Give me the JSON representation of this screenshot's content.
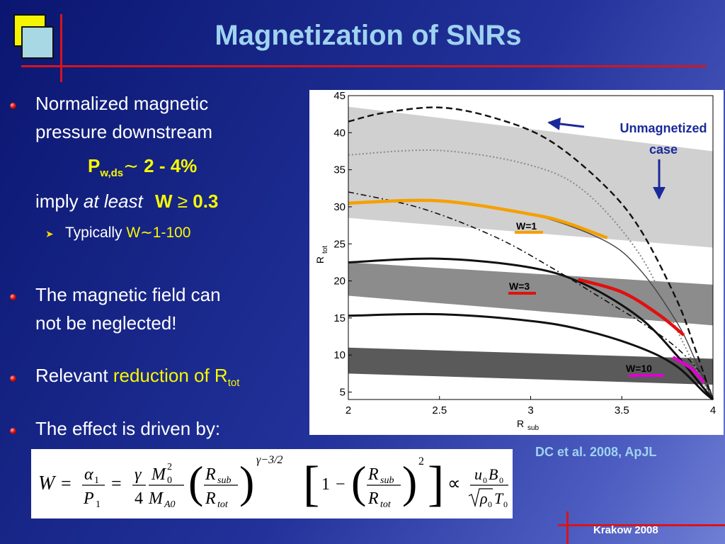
{
  "title": "Magnetization of SNRs",
  "bullets": {
    "b1_line1": "Normalized magnetic",
    "b1_line2": "pressure downstream",
    "pressure_P": "P",
    "pressure_sub": "w,ds",
    "pressure_tilde": "∼",
    "pressure_value": " 2 - 4%",
    "imply": "imply ",
    "at_least": "at least",
    "w_ge": "W ",
    "ge_symbol": "≥",
    "w_value": " 0.3",
    "typically": "Typically ",
    "typ_w": "W∼",
    "typ_range": "1-100",
    "b2_line1": "The magnetic field can",
    "b2_line2": "not be neglected!",
    "b3_text": "Relevant ",
    "b3_highlight": "reduction of R",
    "b3_sub": "tot",
    "b4_text": "The effect is driven by:"
  },
  "chart_data": {
    "type": "line",
    "xlabel": "R",
    "xlabel_sub": "sub",
    "ylabel": "R",
    "ylabel_sub": "tot",
    "xlim": [
      2,
      4
    ],
    "ylim": [
      4,
      45
    ],
    "xticks": [
      "2",
      "2.5",
      "3",
      "3.5",
      "4"
    ],
    "yticks": [
      "5",
      "10",
      "15",
      "20",
      "25",
      "30",
      "35",
      "40",
      "45"
    ],
    "bands": [
      {
        "x": [
          2,
          4
        ],
        "lower": [
          28.5,
          24.5
        ],
        "upper": [
          43.5,
          37.5
        ],
        "color": "#d0d0d0"
      },
      {
        "x": [
          2,
          4
        ],
        "lower": [
          18.0,
          14.0
        ],
        "upper": [
          22.5,
          19.5
        ],
        "color": "#8c8c8c"
      },
      {
        "x": [
          2,
          4
        ],
        "lower": [
          7.5,
          6.0
        ],
        "upper": [
          11.0,
          9.5
        ],
        "color": "#5a5a5a"
      }
    ],
    "series": [
      {
        "style": "dashed",
        "color": "#111111",
        "x": [
          2,
          2.2,
          2.5,
          2.8,
          3.1,
          3.4,
          3.6,
          3.8,
          3.9,
          3.97,
          4.0
        ],
        "y": [
          41.5,
          42.7,
          43.4,
          42.0,
          39.0,
          33.0,
          27.0,
          17.5,
          11.0,
          6.0,
          4.0
        ]
      },
      {
        "style": "dotted",
        "color": "#888888",
        "x": [
          2,
          2.5,
          3.0,
          3.3,
          3.6,
          3.8,
          3.9,
          3.97,
          4.0
        ],
        "y": [
          37.0,
          37.6,
          35.6,
          32.0,
          23.5,
          13.5,
          8.5,
          5.2,
          4.0
        ]
      },
      {
        "style": "dashdot",
        "color": "#111111",
        "x": [
          2,
          2.4,
          2.8,
          3.1,
          3.4,
          3.6,
          3.8,
          3.95,
          4.0
        ],
        "y": [
          32.0,
          29.8,
          26.0,
          22.0,
          17.5,
          14.5,
          11.0,
          7.0,
          4.0
        ]
      },
      {
        "style": "solid",
        "color": "#444444",
        "x": [
          2,
          2.5,
          3.0,
          3.4,
          3.6,
          3.8,
          3.9,
          3.97,
          4.0
        ],
        "y": [
          30.5,
          30.8,
          29.0,
          25.5,
          21.5,
          14.5,
          9.5,
          5.5,
          4.0
        ]
      },
      {
        "style": "solid",
        "color": "#111111",
        "x": [
          2,
          2.5,
          3.0,
          3.3,
          3.6,
          3.8,
          3.95,
          4.0
        ],
        "y": [
          22.5,
          23.0,
          21.8,
          19.5,
          15.0,
          10.0,
          5.5,
          4.0
        ]
      },
      {
        "style": "solid",
        "color": "#111111",
        "x": [
          2,
          2.5,
          3.0,
          3.3,
          3.6,
          3.8,
          3.95,
          4.0
        ],
        "y": [
          15.3,
          15.5,
          14.6,
          13.3,
          11.0,
          8.5,
          5.0,
          4.0
        ]
      },
      {
        "style": "highlight",
        "color": "#f5a000",
        "x": [
          2,
          2.5,
          3.0,
          3.2,
          3.42
        ],
        "y": [
          30.5,
          30.8,
          29.0,
          27.8,
          25.8
        ]
      },
      {
        "style": "highlight",
        "color": "#e01010",
        "x": [
          3.26,
          3.5,
          3.7,
          3.84
        ],
        "y": [
          20.2,
          18.5,
          15.5,
          12.7
        ]
      },
      {
        "style": "highlight",
        "color": "#e000d0",
        "x": [
          3.78,
          3.88,
          3.95
        ],
        "y": [
          9.7,
          8.2,
          6.3
        ]
      }
    ],
    "labels": {
      "w1": "W=1",
      "w3": "W=3",
      "w10": "W=10",
      "unmag_1": "Unmagnetized",
      "unmag_2": "case"
    }
  },
  "citation": "DC et al. 2008, ApJL",
  "formula": {
    "W": "W",
    "eq": "=",
    "alpha": "α",
    "one": "1",
    "P": "P",
    "gamma": "γ",
    "four": "4",
    "M": "M",
    "two": "2",
    "zero": "0",
    "A0": "A0",
    "R": "R",
    "sub": "sub",
    "tot": "tot",
    "exponent": "γ−3/2",
    "propto": "∝",
    "u": "u",
    "B": "B",
    "rho": "ρ",
    "T": "T"
  },
  "footer": "Krakow 2008"
}
